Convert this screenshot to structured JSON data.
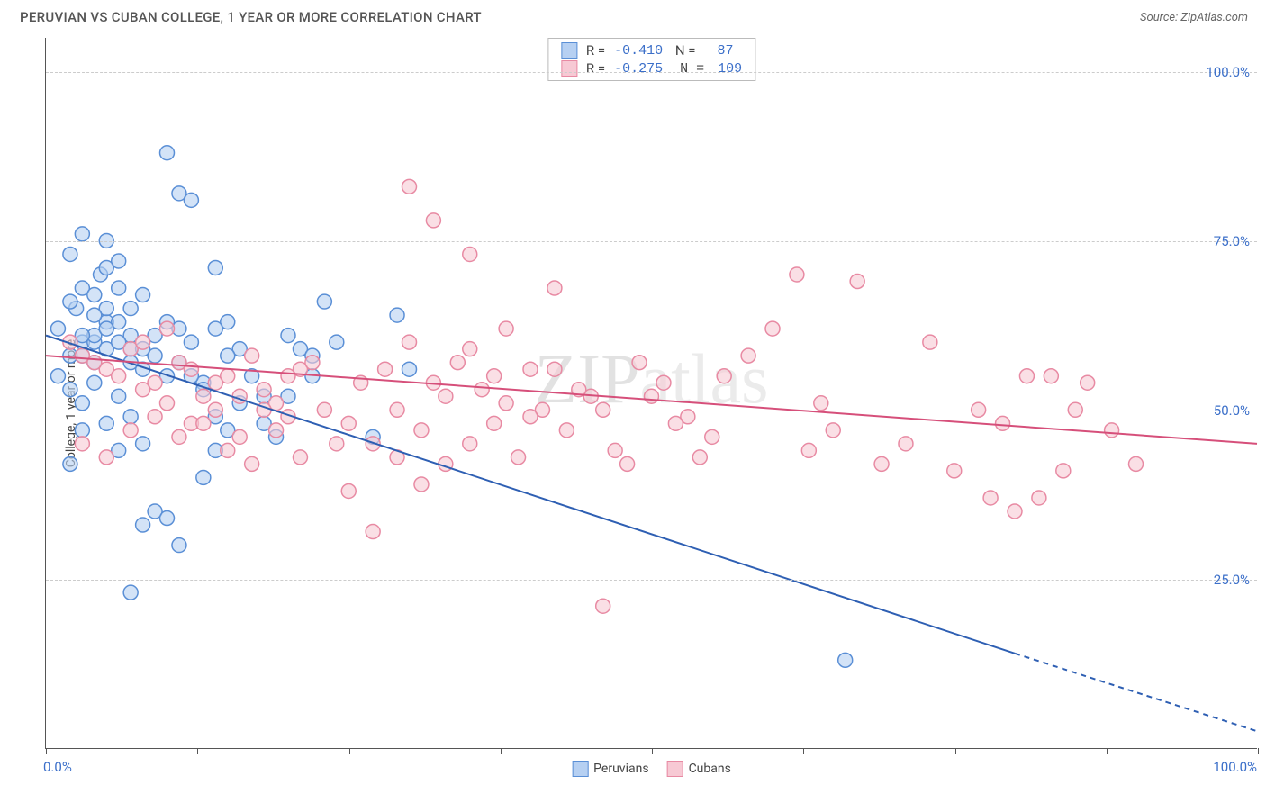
{
  "title": "PERUVIAN VS CUBAN COLLEGE, 1 YEAR OR MORE CORRELATION CHART",
  "source_label": "Source: ZipAtlas.com",
  "y_axis_title": "College, 1 year or more",
  "watermark": "ZIPatlas",
  "x_label_min": "0.0%",
  "x_label_max": "100.0%",
  "y_ticks": [
    {
      "v": 25,
      "label": "25.0%"
    },
    {
      "v": 50,
      "label": "50.0%"
    },
    {
      "v": 75,
      "label": "75.0%"
    },
    {
      "v": 100,
      "label": "100.0%"
    }
  ],
  "x_tick_positions": [
    0,
    12.5,
    25,
    37.5,
    50,
    62.5,
    75,
    87.5,
    100
  ],
  "stats": [
    {
      "swatch_fill": "#b6d0f2",
      "swatch_stroke": "#5a8fd6",
      "r": "-0.410",
      "n": "87"
    },
    {
      "swatch_fill": "#f7c9d4",
      "swatch_stroke": "#e88aa3",
      "r": "-0.275",
      "n": "109"
    }
  ],
  "legend": [
    {
      "swatch_fill": "#b6d0f2",
      "swatch_stroke": "#5a8fd6",
      "label": "Peruvians"
    },
    {
      "swatch_fill": "#f7c9d4",
      "swatch_stroke": "#e88aa3",
      "label": "Cubans"
    }
  ],
  "chart": {
    "type": "scatter",
    "xlim": [
      0,
      100
    ],
    "ylim": [
      0,
      105
    ],
    "bg": "#ffffff",
    "grid_color": "#cccccc",
    "marker_radius": 8,
    "marker_opacity": 0.6,
    "series": [
      {
        "name": "Peruvians",
        "fill": "#b6d0f2",
        "stroke": "#5a8fd6",
        "trend": {
          "x1": 0,
          "y1": 61,
          "x2": 80,
          "y2": 14,
          "x2_dash": 100,
          "y2_dash": 2.5,
          "color": "#2e5fb3",
          "width": 2
        },
        "points": [
          [
            1,
            62
          ],
          [
            2,
            58
          ],
          [
            3,
            60
          ],
          [
            2.5,
            65
          ],
          [
            4,
            57
          ],
          [
            3,
            47
          ],
          [
            5,
            63
          ],
          [
            4.5,
            70
          ],
          [
            6,
            52
          ],
          [
            7,
            59
          ],
          [
            2,
            73
          ],
          [
            3,
            76
          ],
          [
            5,
            75
          ],
          [
            6,
            72
          ],
          [
            8,
            67
          ],
          [
            9,
            58
          ],
          [
            10,
            55
          ],
          [
            8,
            45
          ],
          [
            7,
            49
          ],
          [
            11,
            62
          ],
          [
            12,
            60
          ],
          [
            13,
            54
          ],
          [
            14,
            49
          ],
          [
            15,
            47
          ],
          [
            10,
            88
          ],
          [
            11,
            82
          ],
          [
            12,
            81
          ],
          [
            14,
            71
          ],
          [
            15,
            63
          ],
          [
            16,
            59
          ],
          [
            17,
            55
          ],
          [
            18,
            52
          ],
          [
            7,
            23
          ],
          [
            8,
            33
          ],
          [
            9,
            35
          ],
          [
            10,
            34
          ],
          [
            11,
            30
          ],
          [
            13,
            40
          ],
          [
            14,
            44
          ],
          [
            16,
            51
          ],
          [
            18,
            48
          ],
          [
            19,
            46
          ],
          [
            20,
            52
          ],
          [
            21,
            59
          ],
          [
            22,
            55
          ],
          [
            23,
            66
          ],
          [
            24,
            60
          ],
          [
            27,
            46
          ],
          [
            29,
            64
          ],
          [
            30,
            56
          ],
          [
            2,
            42
          ],
          [
            3,
            51
          ],
          [
            4,
            54
          ],
          [
            5,
            48
          ],
          [
            6,
            44
          ],
          [
            4,
            60
          ],
          [
            5,
            65
          ],
          [
            6,
            68
          ],
          [
            7,
            61
          ],
          [
            8,
            56
          ],
          [
            3,
            58
          ],
          [
            4,
            61
          ],
          [
            5,
            59
          ],
          [
            6,
            63
          ],
          [
            7,
            65
          ],
          [
            1,
            55
          ],
          [
            2,
            53
          ],
          [
            3,
            61
          ],
          [
            4,
            64
          ],
          [
            5,
            62
          ],
          [
            6,
            60
          ],
          [
            7,
            57
          ],
          [
            8,
            59
          ],
          [
            9,
            61
          ],
          [
            10,
            63
          ],
          [
            11,
            57
          ],
          [
            12,
            55
          ],
          [
            13,
            53
          ],
          [
            14,
            62
          ],
          [
            15,
            58
          ],
          [
            20,
            61
          ],
          [
            22,
            58
          ],
          [
            5,
            71
          ],
          [
            66,
            13
          ],
          [
            2,
            66
          ],
          [
            3,
            68
          ],
          [
            4,
            67
          ]
        ]
      },
      {
        "name": "Cubans",
        "fill": "#f7c9d4",
        "stroke": "#e88aa3",
        "trend": {
          "x1": 0,
          "y1": 58,
          "x2": 100,
          "y2": 45,
          "color": "#d64f7a",
          "width": 2
        },
        "points": [
          [
            3,
            58
          ],
          [
            5,
            56
          ],
          [
            7,
            59
          ],
          [
            9,
            54
          ],
          [
            11,
            57
          ],
          [
            13,
            52
          ],
          [
            15,
            55
          ],
          [
            17,
            58
          ],
          [
            19,
            51
          ],
          [
            21,
            56
          ],
          [
            8,
            60
          ],
          [
            10,
            62
          ],
          [
            12,
            48
          ],
          [
            14,
            50
          ],
          [
            16,
            46
          ],
          [
            18,
            53
          ],
          [
            20,
            49
          ],
          [
            22,
            57
          ],
          [
            24,
            45
          ],
          [
            26,
            54
          ],
          [
            25,
            38
          ],
          [
            27,
            32
          ],
          [
            29,
            43
          ],
          [
            31,
            39
          ],
          [
            33,
            52
          ],
          [
            35,
            59
          ],
          [
            37,
            55
          ],
          [
            30,
            83
          ],
          [
            32,
            78
          ],
          [
            35,
            73
          ],
          [
            38,
            62
          ],
          [
            40,
            56
          ],
          [
            42,
            68
          ],
          [
            43,
            47
          ],
          [
            45,
            52
          ],
          [
            47,
            44
          ],
          [
            49,
            57
          ],
          [
            51,
            54
          ],
          [
            53,
            49
          ],
          [
            55,
            46
          ],
          [
            46,
            21
          ],
          [
            48,
            42
          ],
          [
            50,
            52
          ],
          [
            52,
            48
          ],
          [
            54,
            43
          ],
          [
            56,
            55
          ],
          [
            58,
            58
          ],
          [
            60,
            62
          ],
          [
            62,
            70
          ],
          [
            64,
            51
          ],
          [
            63,
            44
          ],
          [
            65,
            47
          ],
          [
            67,
            69
          ],
          [
            69,
            42
          ],
          [
            71,
            45
          ],
          [
            73,
            60
          ],
          [
            75,
            41
          ],
          [
            77,
            50
          ],
          [
            79,
            48
          ],
          [
            81,
            55
          ],
          [
            78,
            37
          ],
          [
            80,
            35
          ],
          [
            82,
            37
          ],
          [
            84,
            41
          ],
          [
            83,
            55
          ],
          [
            85,
            50
          ],
          [
            86,
            54
          ],
          [
            88,
            47
          ],
          [
            90,
            42
          ],
          [
            2,
            60
          ],
          [
            4,
            57
          ],
          [
            6,
            55
          ],
          [
            8,
            53
          ],
          [
            10,
            51
          ],
          [
            12,
            56
          ],
          [
            14,
            54
          ],
          [
            16,
            52
          ],
          [
            18,
            50
          ],
          [
            20,
            55
          ],
          [
            3,
            45
          ],
          [
            5,
            43
          ],
          [
            7,
            47
          ],
          [
            9,
            49
          ],
          [
            11,
            46
          ],
          [
            13,
            48
          ],
          [
            15,
            44
          ],
          [
            17,
            42
          ],
          [
            19,
            47
          ],
          [
            21,
            43
          ],
          [
            23,
            50
          ],
          [
            25,
            48
          ],
          [
            27,
            45
          ],
          [
            29,
            50
          ],
          [
            31,
            47
          ],
          [
            33,
            42
          ],
          [
            35,
            45
          ],
          [
            37,
            48
          ],
          [
            39,
            43
          ],
          [
            41,
            50
          ],
          [
            28,
            56
          ],
          [
            30,
            60
          ],
          [
            32,
            54
          ],
          [
            34,
            57
          ],
          [
            36,
            53
          ],
          [
            38,
            51
          ],
          [
            40,
            49
          ],
          [
            42,
            56
          ],
          [
            44,
            53
          ],
          [
            46,
            50
          ]
        ]
      }
    ]
  }
}
